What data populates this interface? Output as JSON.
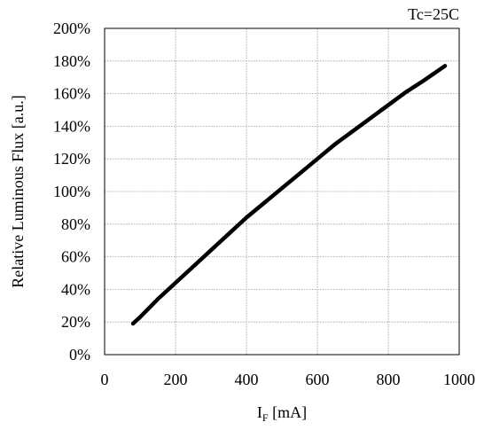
{
  "chart_data": {
    "type": "line",
    "annotation": "Tc=25C",
    "xlabel_main": "I",
    "xlabel_sub": "F",
    "xlabel_unit": " [mA]",
    "ylabel": "Relative Luminous Flux [a.u.]",
    "xlim": [
      0,
      1000
    ],
    "ylim": [
      0,
      200
    ],
    "x_ticks": [
      0,
      200,
      400,
      600,
      800,
      1000
    ],
    "y_ticks": [
      0,
      20,
      40,
      60,
      80,
      100,
      120,
      140,
      160,
      180,
      200
    ],
    "x_tick_labels": [
      "0",
      "200",
      "400",
      "600",
      "800",
      "1000"
    ],
    "y_tick_labels": [
      "0%",
      "20%",
      "40%",
      "60%",
      "80%",
      "100%",
      "120%",
      "140%",
      "160%",
      "180%",
      "200%"
    ],
    "grid": true,
    "line_color": "#000000",
    "series": [
      {
        "x": [
          80,
          100,
          150,
          200,
          250,
          300,
          350,
          400,
          450,
          500,
          550,
          600,
          650,
          700,
          750,
          800,
          850,
          900,
          960
        ],
        "y": [
          19,
          23,
          34,
          44,
          54,
          64,
          74,
          84,
          93,
          102,
          111,
          120,
          129,
          137,
          145,
          153,
          161,
          168,
          177
        ]
      }
    ]
  }
}
